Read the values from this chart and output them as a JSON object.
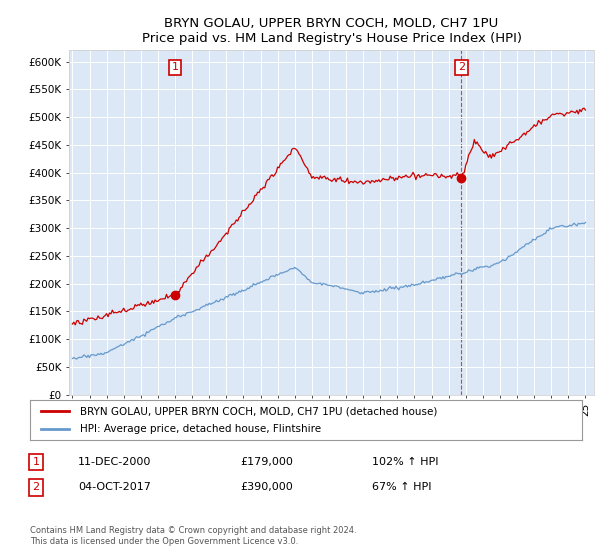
{
  "title": "BRYN GOLAU, UPPER BRYN COCH, MOLD, CH7 1PU",
  "subtitle": "Price paid vs. HM Land Registry's House Price Index (HPI)",
  "ylim": [
    0,
    620000
  ],
  "yticks": [
    0,
    50000,
    100000,
    150000,
    200000,
    250000,
    300000,
    350000,
    400000,
    450000,
    500000,
    550000,
    600000
  ],
  "ytick_labels": [
    "£0",
    "£50K",
    "£100K",
    "£150K",
    "£200K",
    "£250K",
    "£300K",
    "£350K",
    "£400K",
    "£450K",
    "£500K",
    "£550K",
    "£600K"
  ],
  "sale1_year": 2001.0,
  "sale1_price": 179000,
  "sale1_label": "1",
  "sale2_year": 2017.75,
  "sale2_price": 390000,
  "sale2_label": "2",
  "line1_color": "#cc0000",
  "line2_color": "#6699cc",
  "plot_bg_color": "#dce8f5",
  "background_color": "#ffffff",
  "grid_color": "#ffffff",
  "legend1_text": "BRYN GOLAU, UPPER BRYN COCH, MOLD, CH7 1PU (detached house)",
  "legend2_text": "HPI: Average price, detached house, Flintshire",
  "note1_label": "1",
  "note1_date": "11-DEC-2000",
  "note1_price": "£179,000",
  "note1_hpi": "102% ↑ HPI",
  "note2_label": "2",
  "note2_date": "04-OCT-2017",
  "note2_price": "£390,000",
  "note2_hpi": "67% ↑ HPI",
  "footer": "Contains HM Land Registry data © Crown copyright and database right 2024.\nThis data is licensed under the Open Government Licence v3.0."
}
